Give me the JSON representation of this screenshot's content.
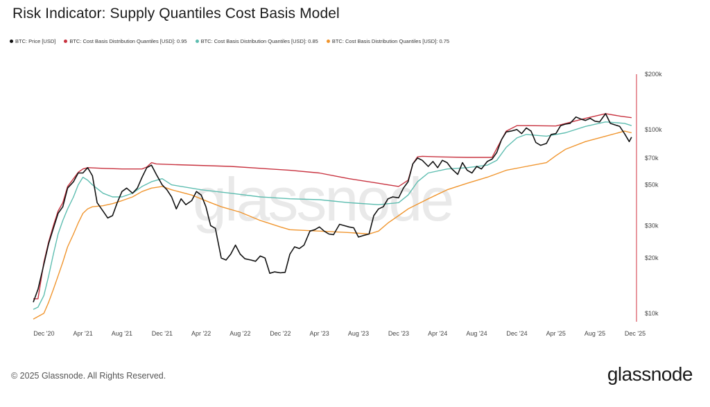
{
  "chart_data": {
    "type": "line",
    "title": "Risk Indicator: Supply Quantiles Cost Basis Model",
    "y_scale": "log",
    "ylim": [
      9000,
      200000
    ],
    "x_range": [
      2020.83,
      2025.92
    ],
    "yticks": [
      {
        "value": 10000,
        "label": "$10k"
      },
      {
        "value": 20000,
        "label": "$20k"
      },
      {
        "value": 30000,
        "label": "$30k"
      },
      {
        "value": 50000,
        "label": "$50k"
      },
      {
        "value": 70000,
        "label": "$70k"
      },
      {
        "value": 100000,
        "label": "$100k"
      },
      {
        "value": 200000,
        "label": "$200k"
      }
    ],
    "xticks": [
      {
        "value": 2020.92,
        "label": "Dec '20"
      },
      {
        "value": 2021.25,
        "label": "Apr '21"
      },
      {
        "value": 2021.58,
        "label": "Aug '21"
      },
      {
        "value": 2021.92,
        "label": "Dec '21"
      },
      {
        "value": 2022.25,
        "label": "Apr '22"
      },
      {
        "value": 2022.58,
        "label": "Aug '22"
      },
      {
        "value": 2022.92,
        "label": "Dec '22"
      },
      {
        "value": 2023.25,
        "label": "Apr '23"
      },
      {
        "value": 2023.58,
        "label": "Aug '23"
      },
      {
        "value": 2023.92,
        "label": "Dec '23"
      },
      {
        "value": 2024.25,
        "label": "Apr '24"
      },
      {
        "value": 2024.58,
        "label": "Aug '24"
      },
      {
        "value": 2024.92,
        "label": "Dec '24"
      },
      {
        "value": 2025.25,
        "label": "Apr '25"
      },
      {
        "value": 2025.58,
        "label": "Aug '25"
      },
      {
        "value": 2025.92,
        "label": "Dec '25"
      }
    ],
    "series": [
      {
        "name": "BTC: Price [USD]",
        "color": "#111111",
        "points": [
          [
            2020.83,
            11500
          ],
          [
            2020.87,
            13500
          ],
          [
            2020.92,
            18500
          ],
          [
            2020.96,
            24000
          ],
          [
            2021.0,
            29000
          ],
          [
            2021.04,
            35000
          ],
          [
            2021.08,
            38000
          ],
          [
            2021.12,
            48000
          ],
          [
            2021.17,
            52000
          ],
          [
            2021.21,
            58000
          ],
          [
            2021.25,
            58000
          ],
          [
            2021.29,
            62000
          ],
          [
            2021.33,
            56000
          ],
          [
            2021.37,
            40000
          ],
          [
            2021.42,
            36000
          ],
          [
            2021.46,
            33000
          ],
          [
            2021.5,
            34000
          ],
          [
            2021.54,
            40000
          ],
          [
            2021.58,
            46000
          ],
          [
            2021.62,
            48000
          ],
          [
            2021.67,
            45000
          ],
          [
            2021.71,
            48000
          ],
          [
            2021.75,
            55000
          ],
          [
            2021.79,
            62000
          ],
          [
            2021.83,
            64000
          ],
          [
            2021.87,
            57000
          ],
          [
            2021.92,
            50000
          ],
          [
            2021.96,
            47000
          ],
          [
            2022.0,
            43000
          ],
          [
            2022.04,
            37000
          ],
          [
            2022.08,
            42000
          ],
          [
            2022.12,
            39000
          ],
          [
            2022.17,
            41000
          ],
          [
            2022.21,
            46000
          ],
          [
            2022.25,
            44000
          ],
          [
            2022.29,
            38000
          ],
          [
            2022.33,
            30000
          ],
          [
            2022.37,
            29000
          ],
          [
            2022.42,
            20000
          ],
          [
            2022.46,
            19500
          ],
          [
            2022.5,
            21000
          ],
          [
            2022.54,
            23500
          ],
          [
            2022.58,
            21000
          ],
          [
            2022.62,
            19800
          ],
          [
            2022.67,
            19500
          ],
          [
            2022.71,
            19200
          ],
          [
            2022.75,
            20500
          ],
          [
            2022.79,
            20000
          ],
          [
            2022.83,
            16500
          ],
          [
            2022.87,
            16800
          ],
          [
            2022.92,
            16600
          ],
          [
            2022.96,
            16700
          ],
          [
            2023.0,
            21000
          ],
          [
            2023.04,
            23000
          ],
          [
            2023.08,
            22500
          ],
          [
            2023.12,
            23500
          ],
          [
            2023.17,
            28000
          ],
          [
            2023.21,
            28500
          ],
          [
            2023.25,
            29500
          ],
          [
            2023.29,
            28000
          ],
          [
            2023.33,
            27000
          ],
          [
            2023.37,
            26800
          ],
          [
            2023.42,
            30500
          ],
          [
            2023.46,
            30000
          ],
          [
            2023.5,
            29500
          ],
          [
            2023.54,
            29200
          ],
          [
            2023.58,
            26000
          ],
          [
            2023.62,
            26500
          ],
          [
            2023.67,
            27000
          ],
          [
            2023.71,
            34000
          ],
          [
            2023.75,
            37000
          ],
          [
            2023.79,
            38000
          ],
          [
            2023.83,
            42000
          ],
          [
            2023.87,
            43000
          ],
          [
            2023.92,
            42500
          ],
          [
            2023.96,
            48000
          ],
          [
            2024.0,
            52000
          ],
          [
            2024.04,
            65000
          ],
          [
            2024.08,
            70000
          ],
          [
            2024.12,
            68000
          ],
          [
            2024.17,
            63000
          ],
          [
            2024.21,
            67000
          ],
          [
            2024.25,
            62000
          ],
          [
            2024.29,
            68000
          ],
          [
            2024.33,
            66000
          ],
          [
            2024.37,
            61000
          ],
          [
            2024.42,
            57000
          ],
          [
            2024.46,
            66000
          ],
          [
            2024.5,
            60000
          ],
          [
            2024.54,
            58000
          ],
          [
            2024.58,
            63000
          ],
          [
            2024.62,
            61000
          ],
          [
            2024.67,
            67000
          ],
          [
            2024.71,
            69000
          ],
          [
            2024.75,
            75000
          ],
          [
            2024.79,
            88000
          ],
          [
            2024.83,
            97000
          ],
          [
            2024.87,
            98000
          ],
          [
            2024.92,
            100000
          ],
          [
            2024.96,
            95000
          ],
          [
            2025.0,
            102000
          ],
          [
            2025.04,
            98000
          ],
          [
            2025.08,
            85000
          ],
          [
            2025.12,
            82000
          ],
          [
            2025.17,
            84000
          ],
          [
            2025.21,
            94000
          ],
          [
            2025.25,
            95000
          ],
          [
            2025.29,
            105000
          ],
          [
            2025.33,
            107000
          ],
          [
            2025.37,
            108000
          ],
          [
            2025.42,
            117000
          ],
          [
            2025.46,
            114000
          ],
          [
            2025.5,
            112000
          ],
          [
            2025.54,
            115000
          ],
          [
            2025.58,
            111000
          ],
          [
            2025.62,
            110000
          ],
          [
            2025.67,
            122000
          ],
          [
            2025.71,
            108000
          ],
          [
            2025.75,
            106000
          ],
          [
            2025.79,
            104000
          ],
          [
            2025.83,
            95000
          ],
          [
            2025.87,
            86000
          ],
          [
            2025.89,
            91000
          ]
        ]
      },
      {
        "name": "BTC: Cost Basis Distribution Quantiles [USD]: 0.95",
        "color": "#c8323f",
        "points": [
          [
            2020.83,
            12000
          ],
          [
            2020.87,
            12000
          ],
          [
            2020.92,
            19000
          ],
          [
            2020.96,
            24500
          ],
          [
            2021.0,
            30000
          ],
          [
            2021.04,
            36000
          ],
          [
            2021.08,
            40000
          ],
          [
            2021.12,
            49000
          ],
          [
            2021.17,
            54000
          ],
          [
            2021.21,
            58500
          ],
          [
            2021.25,
            61000
          ],
          [
            2021.29,
            62000
          ],
          [
            2021.42,
            61500
          ],
          [
            2021.58,
            61000
          ],
          [
            2021.75,
            61000
          ],
          [
            2021.79,
            62500
          ],
          [
            2021.83,
            66000
          ],
          [
            2021.87,
            65000
          ],
          [
            2022.0,
            64500
          ],
          [
            2022.5,
            63000
          ],
          [
            2023.0,
            60000
          ],
          [
            2023.25,
            58000
          ],
          [
            2023.5,
            54000
          ],
          [
            2023.75,
            51000
          ],
          [
            2023.83,
            50000
          ],
          [
            2023.92,
            49000
          ],
          [
            2024.0,
            53000
          ],
          [
            2024.04,
            65000
          ],
          [
            2024.08,
            71000
          ],
          [
            2024.12,
            71500
          ],
          [
            2024.25,
            71000
          ],
          [
            2024.5,
            70500
          ],
          [
            2024.71,
            70500
          ],
          [
            2024.79,
            88000
          ],
          [
            2024.83,
            98000
          ],
          [
            2024.92,
            105000
          ],
          [
            2025.0,
            105000
          ],
          [
            2025.25,
            104500
          ],
          [
            2025.5,
            115000
          ],
          [
            2025.67,
            122000
          ],
          [
            2025.8,
            118000
          ],
          [
            2025.89,
            116000
          ]
        ]
      },
      {
        "name": "BTC: Cost Basis Distribution Quantiles [USD]: 0.85",
        "color": "#5dbdb0",
        "points": [
          [
            2020.83,
            10500
          ],
          [
            2020.87,
            10800
          ],
          [
            2020.92,
            12500
          ],
          [
            2020.96,
            16000
          ],
          [
            2021.0,
            21000
          ],
          [
            2021.04,
            27000
          ],
          [
            2021.08,
            32000
          ],
          [
            2021.12,
            37000
          ],
          [
            2021.17,
            43000
          ],
          [
            2021.21,
            50000
          ],
          [
            2021.25,
            55000
          ],
          [
            2021.29,
            53000
          ],
          [
            2021.33,
            50000
          ],
          [
            2021.42,
            45000
          ],
          [
            2021.5,
            43000
          ],
          [
            2021.58,
            43000
          ],
          [
            2021.67,
            45000
          ],
          [
            2021.75,
            49000
          ],
          [
            2021.83,
            52000
          ],
          [
            2021.92,
            54000
          ],
          [
            2022.0,
            50000
          ],
          [
            2022.25,
            47000
          ],
          [
            2022.5,
            45000
          ],
          [
            2022.75,
            43000
          ],
          [
            2023.0,
            42000
          ],
          [
            2023.25,
            41500
          ],
          [
            2023.5,
            40000
          ],
          [
            2023.75,
            39000
          ],
          [
            2023.92,
            40000
          ],
          [
            2024.0,
            44000
          ],
          [
            2024.08,
            52000
          ],
          [
            2024.17,
            58000
          ],
          [
            2024.33,
            61000
          ],
          [
            2024.5,
            62000
          ],
          [
            2024.67,
            64000
          ],
          [
            2024.75,
            68000
          ],
          [
            2024.83,
            80000
          ],
          [
            2024.92,
            90000
          ],
          [
            2025.0,
            94000
          ],
          [
            2025.17,
            92000
          ],
          [
            2025.33,
            96000
          ],
          [
            2025.5,
            104000
          ],
          [
            2025.67,
            110000
          ],
          [
            2025.83,
            108000
          ],
          [
            2025.89,
            105000
          ]
        ]
      },
      {
        "name": "BTC: Cost Basis Distribution Quantiles [USD]: 0.75",
        "color": "#f0952e",
        "points": [
          [
            2020.83,
            9300
          ],
          [
            2020.92,
            10000
          ],
          [
            2020.96,
            11500
          ],
          [
            2021.0,
            13500
          ],
          [
            2021.04,
            16000
          ],
          [
            2021.08,
            19000
          ],
          [
            2021.12,
            23000
          ],
          [
            2021.17,
            27000
          ],
          [
            2021.21,
            31000
          ],
          [
            2021.25,
            35000
          ],
          [
            2021.29,
            37000
          ],
          [
            2021.33,
            38000
          ],
          [
            2021.42,
            38500
          ],
          [
            2021.5,
            39500
          ],
          [
            2021.58,
            41000
          ],
          [
            2021.67,
            43000
          ],
          [
            2021.75,
            46000
          ],
          [
            2021.83,
            48000
          ],
          [
            2021.92,
            49000
          ],
          [
            2022.0,
            47000
          ],
          [
            2022.17,
            44000
          ],
          [
            2022.33,
            40000
          ],
          [
            2022.42,
            38000
          ],
          [
            2022.58,
            35500
          ],
          [
            2022.75,
            32000
          ],
          [
            2022.92,
            29500
          ],
          [
            2023.0,
            28500
          ],
          [
            2023.25,
            28000
          ],
          [
            2023.5,
            27500
          ],
          [
            2023.67,
            27000
          ],
          [
            2023.75,
            28000
          ],
          [
            2023.83,
            31000
          ],
          [
            2023.92,
            34000
          ],
          [
            2024.0,
            37000
          ],
          [
            2024.17,
            42000
          ],
          [
            2024.33,
            47000
          ],
          [
            2024.5,
            51000
          ],
          [
            2024.67,
            55000
          ],
          [
            2024.83,
            60000
          ],
          [
            2025.0,
            63000
          ],
          [
            2025.17,
            66000
          ],
          [
            2025.25,
            72000
          ],
          [
            2025.33,
            78000
          ],
          [
            2025.5,
            86000
          ],
          [
            2025.67,
            92000
          ],
          [
            2025.83,
            98000
          ],
          [
            2025.89,
            96000
          ]
        ]
      }
    ]
  },
  "footer": {
    "copyright": "© 2025 Glassnode. All Rights Reserved.",
    "brand": "glassnode"
  },
  "watermark": "glassnode"
}
